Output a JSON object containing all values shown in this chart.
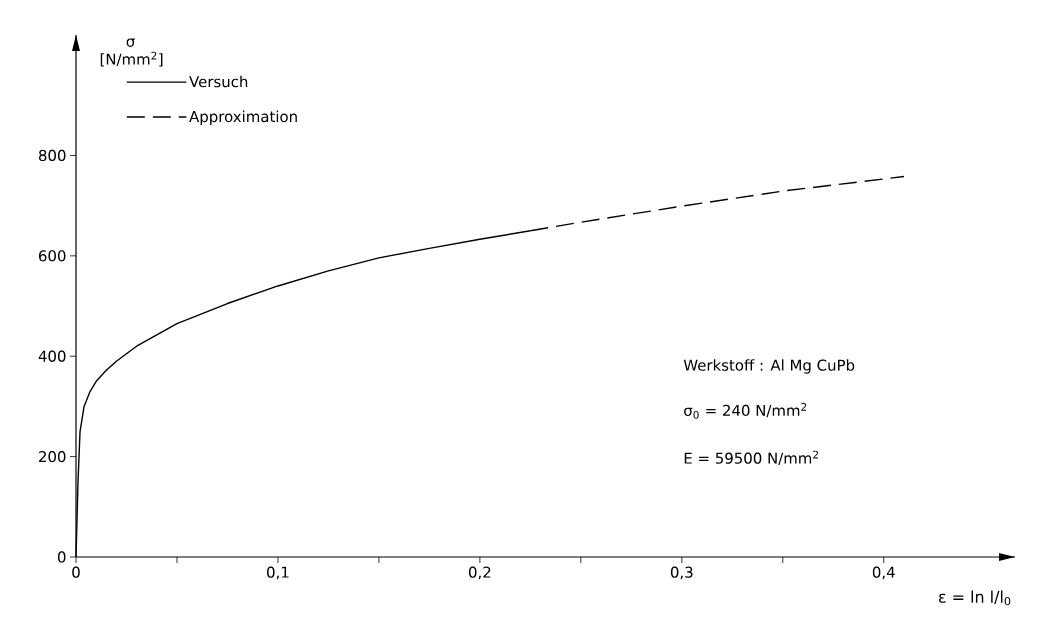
{
  "chart_data": {
    "type": "line",
    "ylabel": "σ [N/mm$^{2}$]",
    "xlabel": "ε = ln l/l$_{0}$",
    "xlim": [
      0,
      0.465
    ],
    "ylim": [
      0,
      1040
    ],
    "xticks": [
      0,
      {
        "value": 0.05,
        "label": null
      },
      {
        "value": 0.1,
        "label": "0,1"
      },
      {
        "value": 0.15,
        "label": null
      },
      {
        "value": 0.2,
        "label": "0,2"
      },
      {
        "value": 0.25,
        "label": null
      },
      {
        "value": 0.3,
        "label": "0,3"
      },
      {
        "value": 0.35,
        "label": null
      },
      {
        "value": 0.4,
        "label": "0,4"
      }
    ],
    "yticks": [
      0,
      200,
      400,
      600,
      800
    ],
    "legend": "top left",
    "grid": false,
    "series": [
      {
        "name": "Versuch",
        "color": "#000000",
        "line_style": "solid",
        "x": [
          0,
          0.001,
          0.002,
          0.004,
          0.007,
          0.01,
          0.015,
          0.02,
          0.03,
          0.05,
          0.075,
          0.1,
          0.125,
          0.15,
          0.175,
          0.2,
          0.225
        ],
        "values": [
          0,
          150,
          250,
          300,
          330,
          350,
          372,
          390,
          420,
          465,
          505,
          540,
          570,
          596,
          615,
          633,
          650
        ]
      },
      {
        "name": "Approximation",
        "color": "#000000",
        "line_style": "dashed",
        "x": [
          0.225,
          0.25,
          0.3,
          0.35,
          0.41
        ],
        "values": [
          650,
          667,
          699,
          729,
          758
        ]
      }
    ],
    "annotations": [
      "Werkstoff : Al Mg CuPb",
      "σ$_{0}$ = 240 N/mm$^{2}$",
      "E  = 59500 N/mm$^{2}$"
    ]
  }
}
